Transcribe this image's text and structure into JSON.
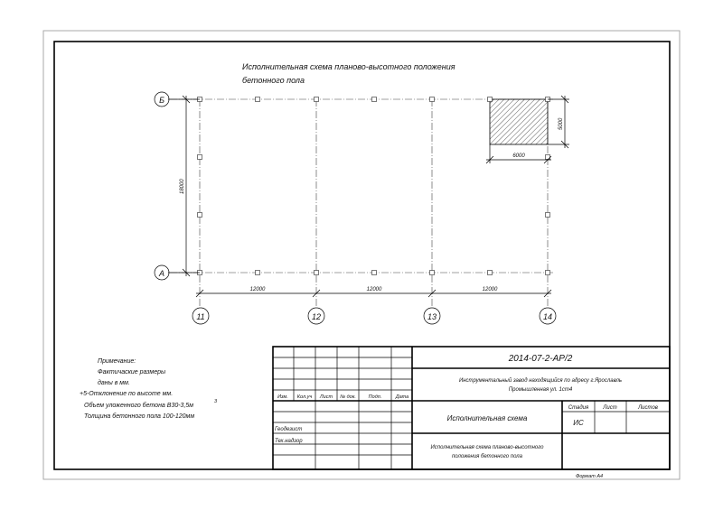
{
  "drawing": {
    "title_line1": "Исполнительная схема планово-высотного положения",
    "title_line2": "бетонного пола",
    "axes_rows": [
      "Б",
      "А"
    ],
    "axes_cols": [
      "11",
      "12",
      "13",
      "14"
    ],
    "dim_spans": [
      "12000",
      "12000",
      "12000"
    ],
    "dim_total_vertical": "18000",
    "hatched_width": "6000",
    "hatched_height": "5000"
  },
  "notes": {
    "line1": "Примечание:",
    "line2": "Фактичаские размеры",
    "line3": "даны в мм.",
    "line4": "+5-Отклонение по высоте мм.",
    "line5": "Объем уложенного бетона В30-3,5м",
    "line5_sup": "3",
    "line6": "Толщина бетонного пола 100-120мм"
  },
  "title_block": {
    "code": "2014-07-2-АР/2",
    "org_line1": "Инструментальный завод находящийся по адресу г.Ярославль",
    "org_line2": "Промышленная ул. 1ст4",
    "headers": [
      "Изм.",
      "Кол.уч",
      "Лист",
      "№ док.",
      "Подп.",
      "Дата"
    ],
    "role1": "Геодезист",
    "role2": "Тех.надзор",
    "doc_type": "Исполнительная схема",
    "doc_name_line1": "Исполнительная схема планово-высотного",
    "doc_name_line2": "положения бетонного пола",
    "stage_header": "Стадия",
    "sheet_header": "Лист",
    "sheets_header": "Листов",
    "stage_value": "ИС",
    "format": "Формат А4"
  }
}
